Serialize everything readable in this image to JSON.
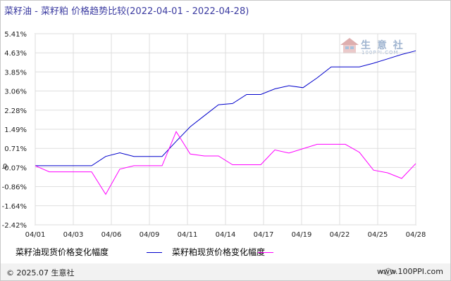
{
  "title": "菜籽油 - 菜籽粕 价格趋势比较(2022-04-01 - 2022-04-28)",
  "watermark": {
    "brand": "生 意 社",
    "url": "100PPI.COM"
  },
  "footer": {
    "copyright": "© 2025.07 生意社",
    "site": "www.100PPI.com"
  },
  "colors": {
    "series_oil": "#0000cc",
    "series_meal": "#ff00ff",
    "grid": "#dddddd",
    "footer_bg": "#f2f2f2"
  },
  "chart_data": {
    "type": "line",
    "xlabel": "",
    "ylabel": "",
    "x_tick_labels": [
      "04/01",
      "04/03",
      "04/06",
      "04/09",
      "04/11",
      "04/14",
      "04/17",
      "04/19",
      "04/22",
      "04/25",
      "04/28"
    ],
    "y_tick_labels": [
      "5.41%",
      "4.63%",
      "3.85%",
      "3.06%",
      "2.28%",
      "1.49%",
      "0.71%",
      "-0.07%",
      "-0.86%",
      "-1.64%",
      "-2.42%"
    ],
    "y_zero_label": "0",
    "ylim": [
      -2.42,
      5.41
    ],
    "grid": true,
    "legend_position": "bottom",
    "dates": [
      "04/01",
      "04/02",
      "04/03",
      "04/04",
      "04/05",
      "04/06",
      "04/07",
      "04/08",
      "04/09",
      "04/10",
      "04/11",
      "04/12",
      "04/13",
      "04/14",
      "04/15",
      "04/16",
      "04/17",
      "04/18",
      "04/19",
      "04/20",
      "04/21",
      "04/22",
      "04/23",
      "04/24",
      "04/25",
      "04/26",
      "04/27",
      "04/28"
    ],
    "series": [
      {
        "name": "菜籽油现货价格变化幅度",
        "color": "#0000cc",
        "values": [
          0,
          0,
          0,
          0,
          0,
          0.38,
          0.53,
          0.38,
          0.38,
          0.38,
          1.0,
          1.6,
          2.05,
          2.5,
          2.55,
          2.92,
          2.92,
          3.15,
          3.28,
          3.2,
          3.6,
          4.05,
          4.05,
          4.05,
          4.2,
          4.38,
          4.56,
          4.71
        ]
      },
      {
        "name": "菜籽粕现货价格变化幅度",
        "color": "#ff00ff",
        "values": [
          0,
          -0.25,
          -0.25,
          -0.25,
          -0.25,
          -1.17,
          -0.14,
          0.0,
          0.0,
          0.0,
          1.4,
          0.48,
          0.4,
          0.4,
          0.04,
          0.04,
          0.04,
          0.65,
          0.52,
          0.7,
          0.88,
          0.88,
          0.88,
          0.55,
          -0.18,
          -0.29,
          -0.52,
          0.09
        ]
      }
    ]
  }
}
